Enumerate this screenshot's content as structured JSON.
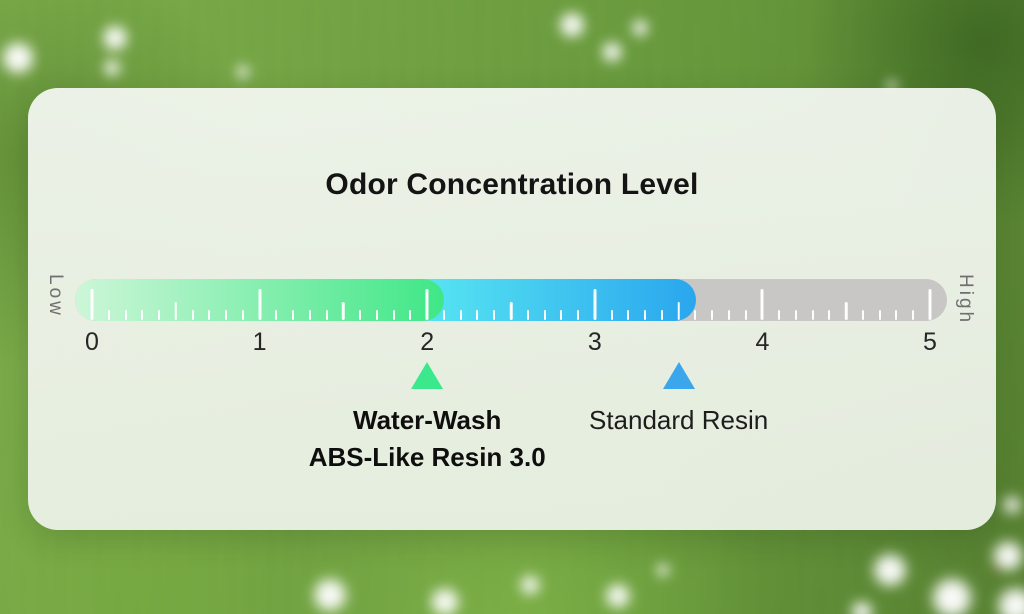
{
  "chart_data": {
    "type": "gauge",
    "title": "Odor Concentration Level",
    "axis": {
      "min": 0,
      "max": 5,
      "tick_labels": [
        "0",
        "1",
        "2",
        "3",
        "4",
        "5"
      ],
      "minor_step": 0.1,
      "low_label": "Low",
      "high_label": "High"
    },
    "track_color": "#c8c7c5",
    "tick_color": "#ffffff",
    "segments": [
      {
        "name": "green-low-odor",
        "from": 0,
        "to": 2,
        "color_start": "#cdf6d8",
        "color_end": "#3fe787"
      },
      {
        "name": "blue-mid-odor",
        "from": 2,
        "to": 3.5,
        "color_start": "#59e8f2",
        "color_end": "#2aa6ee"
      }
    ],
    "markers": [
      {
        "name": "water-wash-abs-like-resin",
        "value": 2,
        "color": "#3be98c",
        "label_lines": [
          "Water-Wash",
          "ABS-Like Resin 3.0"
        ],
        "bold": true
      },
      {
        "name": "standard-resin",
        "value": 3.5,
        "color": "#3ba6ec",
        "label_lines": [
          "Standard Resin"
        ],
        "bold": false
      }
    ]
  }
}
